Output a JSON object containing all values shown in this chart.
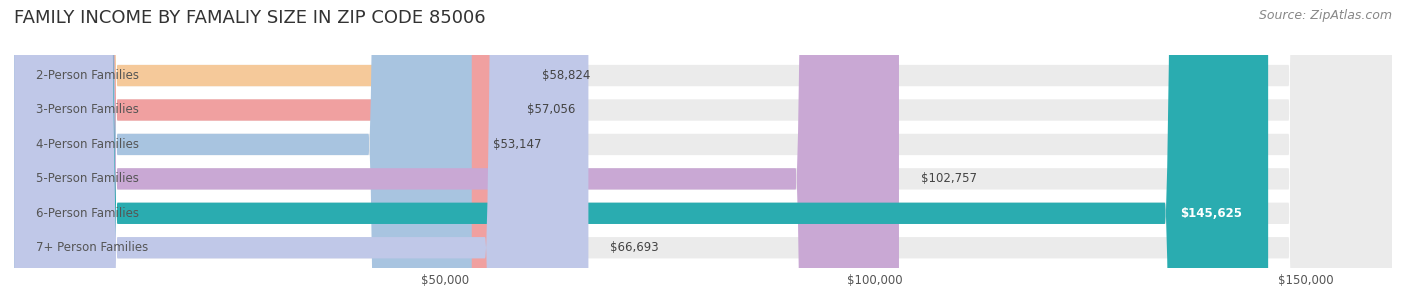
{
  "title": "FAMILY INCOME BY FAMALIY SIZE IN ZIP CODE 85006",
  "source": "Source: ZipAtlas.com",
  "categories": [
    "2-Person Families",
    "3-Person Families",
    "4-Person Families",
    "5-Person Families",
    "6-Person Families",
    "7+ Person Families"
  ],
  "values": [
    58824,
    57056,
    53147,
    102757,
    145625,
    66693
  ],
  "bar_colors": [
    "#f5c99a",
    "#f0a0a0",
    "#a8c4e0",
    "#c9a8d4",
    "#2aacb0",
    "#c0c8e8"
  ],
  "bar_bg_color": "#ebebeb",
  "label_color": "#555555",
  "value_color": "#444444",
  "title_color": "#333333",
  "source_color": "#888888",
  "bg_color": "#ffffff",
  "xlim": [
    0,
    160000
  ],
  "xticks": [
    0,
    50000,
    100000,
    150000
  ],
  "xtick_labels": [
    "",
    "$50,000",
    "$100,000",
    "$150,000"
  ],
  "bar_height": 0.62,
  "title_fontsize": 13,
  "label_fontsize": 8.5,
  "value_fontsize": 8.5,
  "source_fontsize": 9
}
